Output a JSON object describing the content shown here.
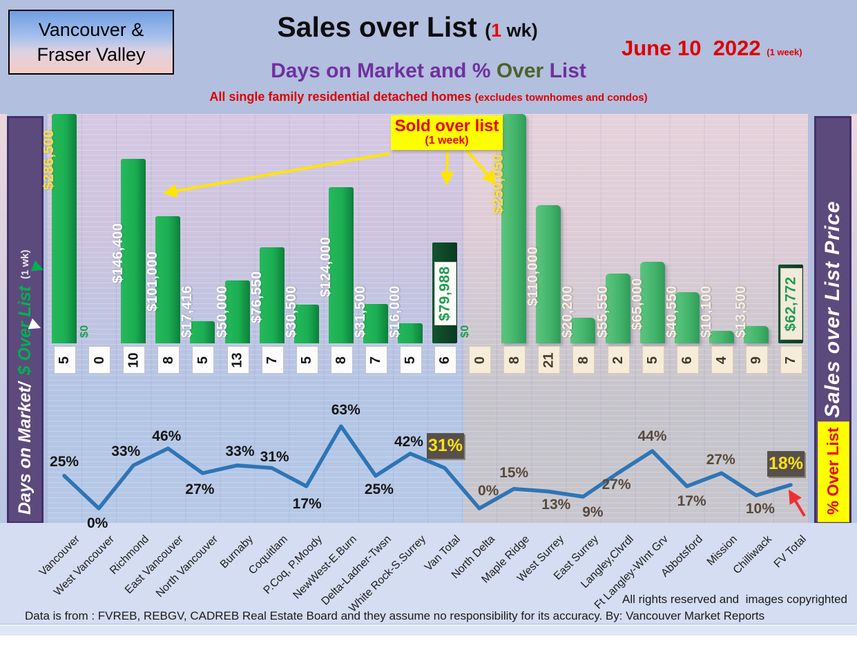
{
  "header": {
    "region_badge_line1": "Vancouver &",
    "region_badge_line2": "Fraser Valley",
    "title": "Sales over List ",
    "title_paren_open": "(",
    "title_paren_num": "1",
    "title_paren_close": " wk)",
    "date": "June 10  2022",
    "date_note": "(1 week)",
    "subtitle_1": "Days on Market and % ",
    "subtitle_2": "Over",
    "subtitle_3": " List",
    "tagline": "All single family residential detached homes ",
    "tagline_paren": "(excludes townhomes and condos)"
  },
  "left_axis": {
    "label_1": "Days on Market/",
    "label_2": "$ Over List",
    "label_3": "(1 wk)"
  },
  "right_axis": {
    "label": "Sales over List Price",
    "pct_box": "% Over List"
  },
  "callout": {
    "line1": "Sold over list",
    "line2": "(1 week)"
  },
  "footer": {
    "rights": "All rights reserved and  images copyrighted",
    "source": "Data is from : FVREB, REBGV, CADREB Real Estate Board and they assume no responsibility for its accuracy. By: Vancouver Market Reports"
  },
  "colors": {
    "bar_green": "#1bae52",
    "bar_green_fv": "#45b56c",
    "bar_dark_total": "#0a3a20",
    "line_blue": "#2e75b6",
    "callout_yellow": "#ffff00",
    "value_label_yellow": "#ffe23c",
    "sidebar_purple": "#5d4a7d",
    "accent_red": "#dd0000",
    "subtitle_purple": "#7030a0",
    "subtitle_olive": "#4f6228"
  },
  "chart_data": {
    "type": "combo",
    "title": "Sales over List (1 wk) — Days on Market and % Over List",
    "categories": [
      "Vancouver",
      "West Vancouver",
      "Richmond",
      "East Vancouver",
      "North Vancouver",
      "Burnaby",
      "Coquitlam",
      "P.Coq, P.Moody",
      "NewWest-E.Burn",
      "Delta-Ladner-Twsn",
      "White Rock-S.Surrey",
      "Van Total",
      "North Delta",
      "Maple Ridge",
      "West Surrey",
      "East Surrey",
      "Langley,Clvrdl",
      "Ft Langley-WInt Grv",
      "Abbotsford",
      "Mission",
      "Chilliwack",
      "FV Total"
    ],
    "series": [
      {
        "name": "$ Over List (1 wk)",
        "type": "bar",
        "values": [
          286500,
          0,
          146400,
          101000,
          17416,
          50000,
          76550,
          30500,
          124000,
          31500,
          16000,
          79988,
          0,
          250050,
          110000,
          20200,
          55550,
          65000,
          40550,
          10100,
          13500,
          62772
        ]
      },
      {
        "name": "Days on Market",
        "type": "badge",
        "values": [
          5,
          0,
          10,
          8,
          5,
          13,
          7,
          5,
          8,
          7,
          5,
          6,
          0,
          8,
          21,
          8,
          2,
          5,
          6,
          4,
          9,
          7
        ]
      },
      {
        "name": "% Over List",
        "type": "line",
        "values": [
          25,
          0,
          33,
          46,
          27,
          33,
          31,
          17,
          63,
          25,
          42,
          31,
          0,
          15,
          13,
          9,
          27,
          44,
          17,
          27,
          10,
          18
        ]
      }
    ],
    "total_categories": [
      "Van Total",
      "FV Total"
    ],
    "region_split_after": "Van Total",
    "highlight_categories": [
      "Vancouver",
      "Maple Ridge"
    ],
    "bar_axis_clip_value": 180000,
    "pct_axis_range": [
      0,
      70
    ],
    "legend_position": "none",
    "grid": true
  }
}
